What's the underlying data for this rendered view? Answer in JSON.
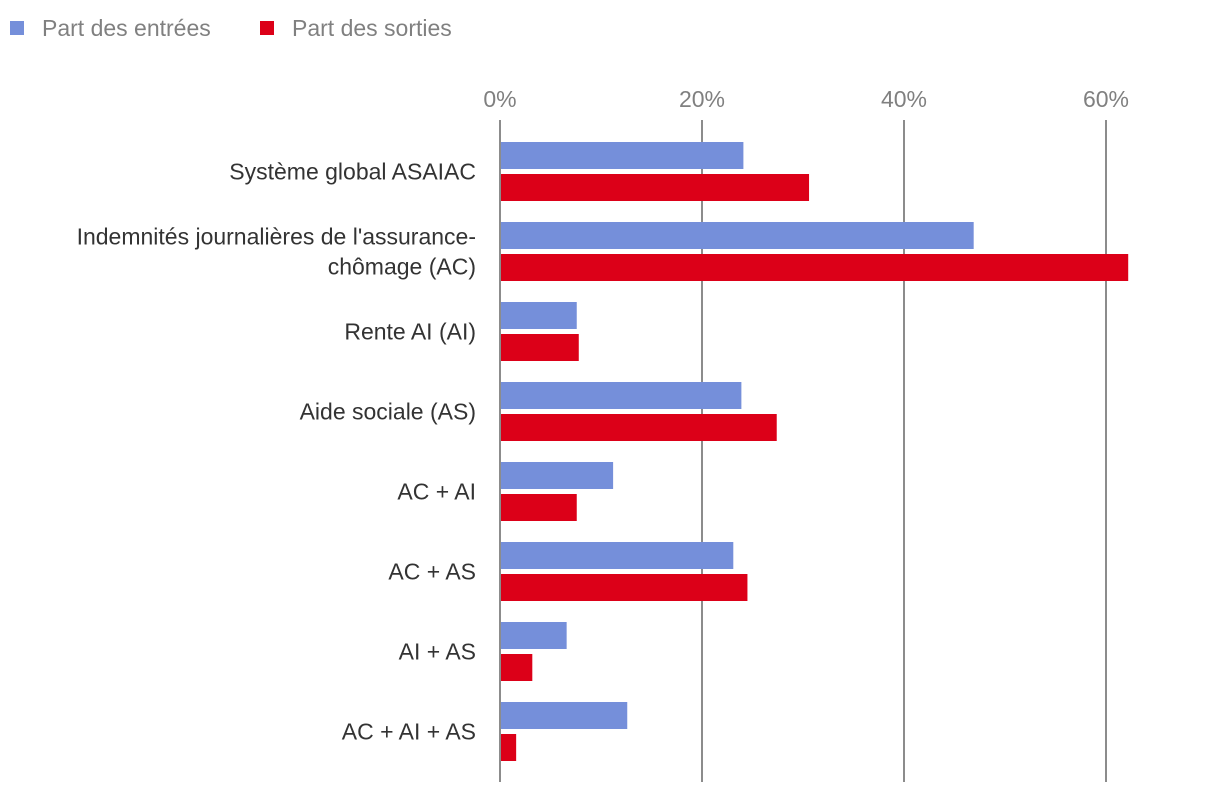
{
  "chart_data": {
    "type": "bar",
    "orientation": "horizontal",
    "title": "",
    "xlabel": "",
    "ylabel": "",
    "categories": [
      [
        "Système global ASAIAC"
      ],
      [
        "Indemnités journalières de l'assurance-",
        "chômage (AC)"
      ],
      [
        "Rente AI (AI)"
      ],
      [
        "Aide sociale (AS)"
      ],
      [
        "AC + AI"
      ],
      [
        "AC + AS"
      ],
      [
        "AI + AS"
      ],
      [
        "AC + AI + AS"
      ]
    ],
    "series": [
      {
        "name": "Part des entrées",
        "color": "#758fda",
        "values": [
          0.24,
          0.468,
          0.075,
          0.238,
          0.111,
          0.23,
          0.065,
          0.125
        ]
      },
      {
        "name": "Part des sorties",
        "color": "#dc0018",
        "values": [
          0.305,
          0.621,
          0.077,
          0.273,
          0.075,
          0.244,
          0.031,
          0.015
        ]
      }
    ],
    "xlim": [
      0,
      0.6
    ],
    "xticks": [
      0,
      0.2,
      0.4,
      0.6
    ],
    "xtick_labels": [
      "0%",
      "20%",
      "40%",
      "60%"
    ],
    "x_axis_position": "top",
    "grid": "vertical",
    "legend_position": "top-left"
  }
}
